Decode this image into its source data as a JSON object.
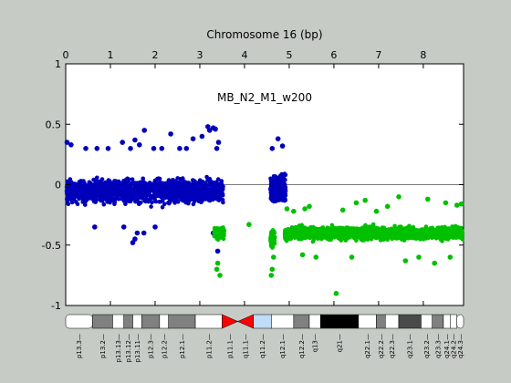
{
  "chart_data": {
    "type": "scatter",
    "title": "Chromosome 16 (bp)",
    "annotation": "MB_N2_M1_w200",
    "x_axis": {
      "position": "top",
      "range": [
        0,
        8.9
      ],
      "ticks": [
        "0",
        "1",
        "2",
        "3",
        "4",
        "5",
        "6",
        "7",
        "8"
      ]
    },
    "y_axis": {
      "range": [
        -1,
        1
      ],
      "ticks": [
        "1",
        "0.5",
        "0",
        "-0.5",
        "-1"
      ]
    },
    "reference_line_y": 0,
    "grid": false,
    "series": [
      {
        "color": "#0000bb",
        "segments": [
          {
            "x_range": [
              0.02,
              3.52
            ],
            "mean": -0.05,
            "spread": 0.17,
            "n": 1700
          },
          {
            "x_range": [
              4.58,
              4.92
            ],
            "mean": -0.03,
            "spread": 0.18,
            "n": 320
          }
        ],
        "outliers": [
          [
            0.03,
            0.35
          ],
          [
            0.12,
            0.33
          ],
          [
            0.45,
            0.3
          ],
          [
            0.7,
            0.3
          ],
          [
            0.95,
            0.3
          ],
          [
            1.27,
            0.35
          ],
          [
            1.45,
            0.3
          ],
          [
            1.55,
            0.37
          ],
          [
            1.65,
            0.33
          ],
          [
            1.76,
            0.45
          ],
          [
            1.97,
            0.3
          ],
          [
            2.15,
            0.3
          ],
          [
            2.35,
            0.42
          ],
          [
            2.55,
            0.3
          ],
          [
            2.7,
            0.3
          ],
          [
            2.85,
            0.38
          ],
          [
            3.05,
            0.4
          ],
          [
            3.18,
            0.48
          ],
          [
            3.22,
            0.45
          ],
          [
            3.3,
            0.47
          ],
          [
            3.35,
            0.46
          ],
          [
            3.42,
            0.35
          ],
          [
            3.38,
            0.3
          ],
          [
            4.75,
            0.38
          ],
          [
            4.62,
            0.3
          ],
          [
            4.85,
            0.32
          ],
          [
            1.55,
            -0.45
          ],
          [
            1.6,
            -0.4
          ],
          [
            1.75,
            -0.4
          ],
          [
            1.3,
            -0.35
          ],
          [
            1.5,
            -0.48
          ],
          [
            0.65,
            -0.35
          ],
          [
            2.0,
            -0.35
          ],
          [
            3.3,
            -0.4
          ],
          [
            3.4,
            -0.55
          ]
        ]
      },
      {
        "color": "#00c000",
        "segments": [
          {
            "x_range": [
              3.32,
              3.55
            ],
            "mean": -0.4,
            "spread": 0.1,
            "n": 90
          },
          {
            "x_range": [
              4.58,
              4.68
            ],
            "mean": -0.45,
            "spread": 0.14,
            "n": 70
          },
          {
            "x_range": [
              4.9,
              8.88
            ],
            "mean": -0.4,
            "spread": 0.09,
            "n": 1800
          }
        ],
        "outliers": [
          [
            3.38,
            -0.7
          ],
          [
            3.4,
            -0.65
          ],
          [
            3.45,
            -0.75
          ],
          [
            4.1,
            -0.33
          ],
          [
            4.62,
            -0.7
          ],
          [
            4.6,
            -0.75
          ],
          [
            4.65,
            -0.6
          ],
          [
            6.05,
            -0.9
          ],
          [
            4.95,
            -0.2
          ],
          [
            5.1,
            -0.22
          ],
          [
            5.35,
            -0.2
          ],
          [
            5.45,
            -0.18
          ],
          [
            6.2,
            -0.21
          ],
          [
            6.5,
            -0.15
          ],
          [
            6.7,
            -0.13
          ],
          [
            6.95,
            -0.22
          ],
          [
            7.2,
            -0.18
          ],
          [
            7.45,
            -0.1
          ],
          [
            8.1,
            -0.12
          ],
          [
            8.5,
            -0.15
          ],
          [
            8.75,
            -0.17
          ],
          [
            8.85,
            -0.16
          ],
          [
            7.6,
            -0.63
          ],
          [
            8.25,
            -0.65
          ],
          [
            6.4,
            -0.6
          ],
          [
            5.6,
            -0.6
          ],
          [
            5.3,
            -0.58
          ],
          [
            7.9,
            -0.6
          ],
          [
            8.6,
            -0.6
          ]
        ]
      }
    ],
    "ideogram": {
      "bands": [
        {
          "label": "p13.3",
          "range": [
            0.0,
            0.6
          ],
          "stain": "white"
        },
        {
          "label": "p13.2",
          "range": [
            0.6,
            1.05
          ],
          "stain": "gray"
        },
        {
          "label": "p13.13",
          "range": [
            1.05,
            1.3
          ],
          "stain": "white"
        },
        {
          "label": "p13.12",
          "range": [
            1.3,
            1.5
          ],
          "stain": "gray"
        },
        {
          "label": "p13.11",
          "range": [
            1.5,
            1.7
          ],
          "stain": "white"
        },
        {
          "label": "p12.3",
          "range": [
            1.7,
            2.1
          ],
          "stain": "gray"
        },
        {
          "label": "p12.2",
          "range": [
            2.1,
            2.3
          ],
          "stain": "white"
        },
        {
          "label": "p12.1",
          "range": [
            2.3,
            2.9
          ],
          "stain": "gray"
        },
        {
          "label": "p11.2",
          "range": [
            2.9,
            3.5
          ],
          "stain": "white"
        },
        {
          "label": "p11.1",
          "range": [
            3.5,
            3.85
          ],
          "stain": "centromere"
        },
        {
          "label": "q11.1",
          "range": [
            3.85,
            4.2
          ],
          "stain": "centromere"
        },
        {
          "label": "q11.2",
          "range": [
            4.2,
            4.6
          ],
          "stain": "stalk"
        },
        {
          "label": "q12.1",
          "range": [
            4.6,
            5.1
          ],
          "stain": "white"
        },
        {
          "label": "q12.2",
          "range": [
            5.1,
            5.45
          ],
          "stain": "gray"
        },
        {
          "label": "q13",
          "range": [
            5.45,
            5.7
          ],
          "stain": "white"
        },
        {
          "label": "q21",
          "range": [
            5.7,
            6.55
          ],
          "stain": "black"
        },
        {
          "label": "q22.1",
          "range": [
            6.55,
            6.95
          ],
          "stain": "white"
        },
        {
          "label": "q22.2",
          "range": [
            6.95,
            7.15
          ],
          "stain": "gray"
        },
        {
          "label": "q22.3",
          "range": [
            7.15,
            7.45
          ],
          "stain": "white"
        },
        {
          "label": "q23.1",
          "range": [
            7.45,
            7.95
          ],
          "stain": "dark"
        },
        {
          "label": "q23.2",
          "range": [
            7.95,
            8.2
          ],
          "stain": "white"
        },
        {
          "label": "q23.3",
          "range": [
            8.2,
            8.45
          ],
          "stain": "gray"
        },
        {
          "label": "q24.1",
          "range": [
            8.45,
            8.6
          ],
          "stain": "white"
        },
        {
          "label": "q24.2",
          "range": [
            8.6,
            8.75
          ],
          "stain": "white"
        },
        {
          "label": "q24.3",
          "range": [
            8.75,
            8.9
          ],
          "stain": "white"
        }
      ],
      "stain_colors": {
        "white": "#ffffff",
        "gray": "#808080",
        "dark": "#4a4a4a",
        "black": "#000000",
        "centromere": "#ff0000",
        "stalk": "#c0dcf8"
      }
    }
  }
}
